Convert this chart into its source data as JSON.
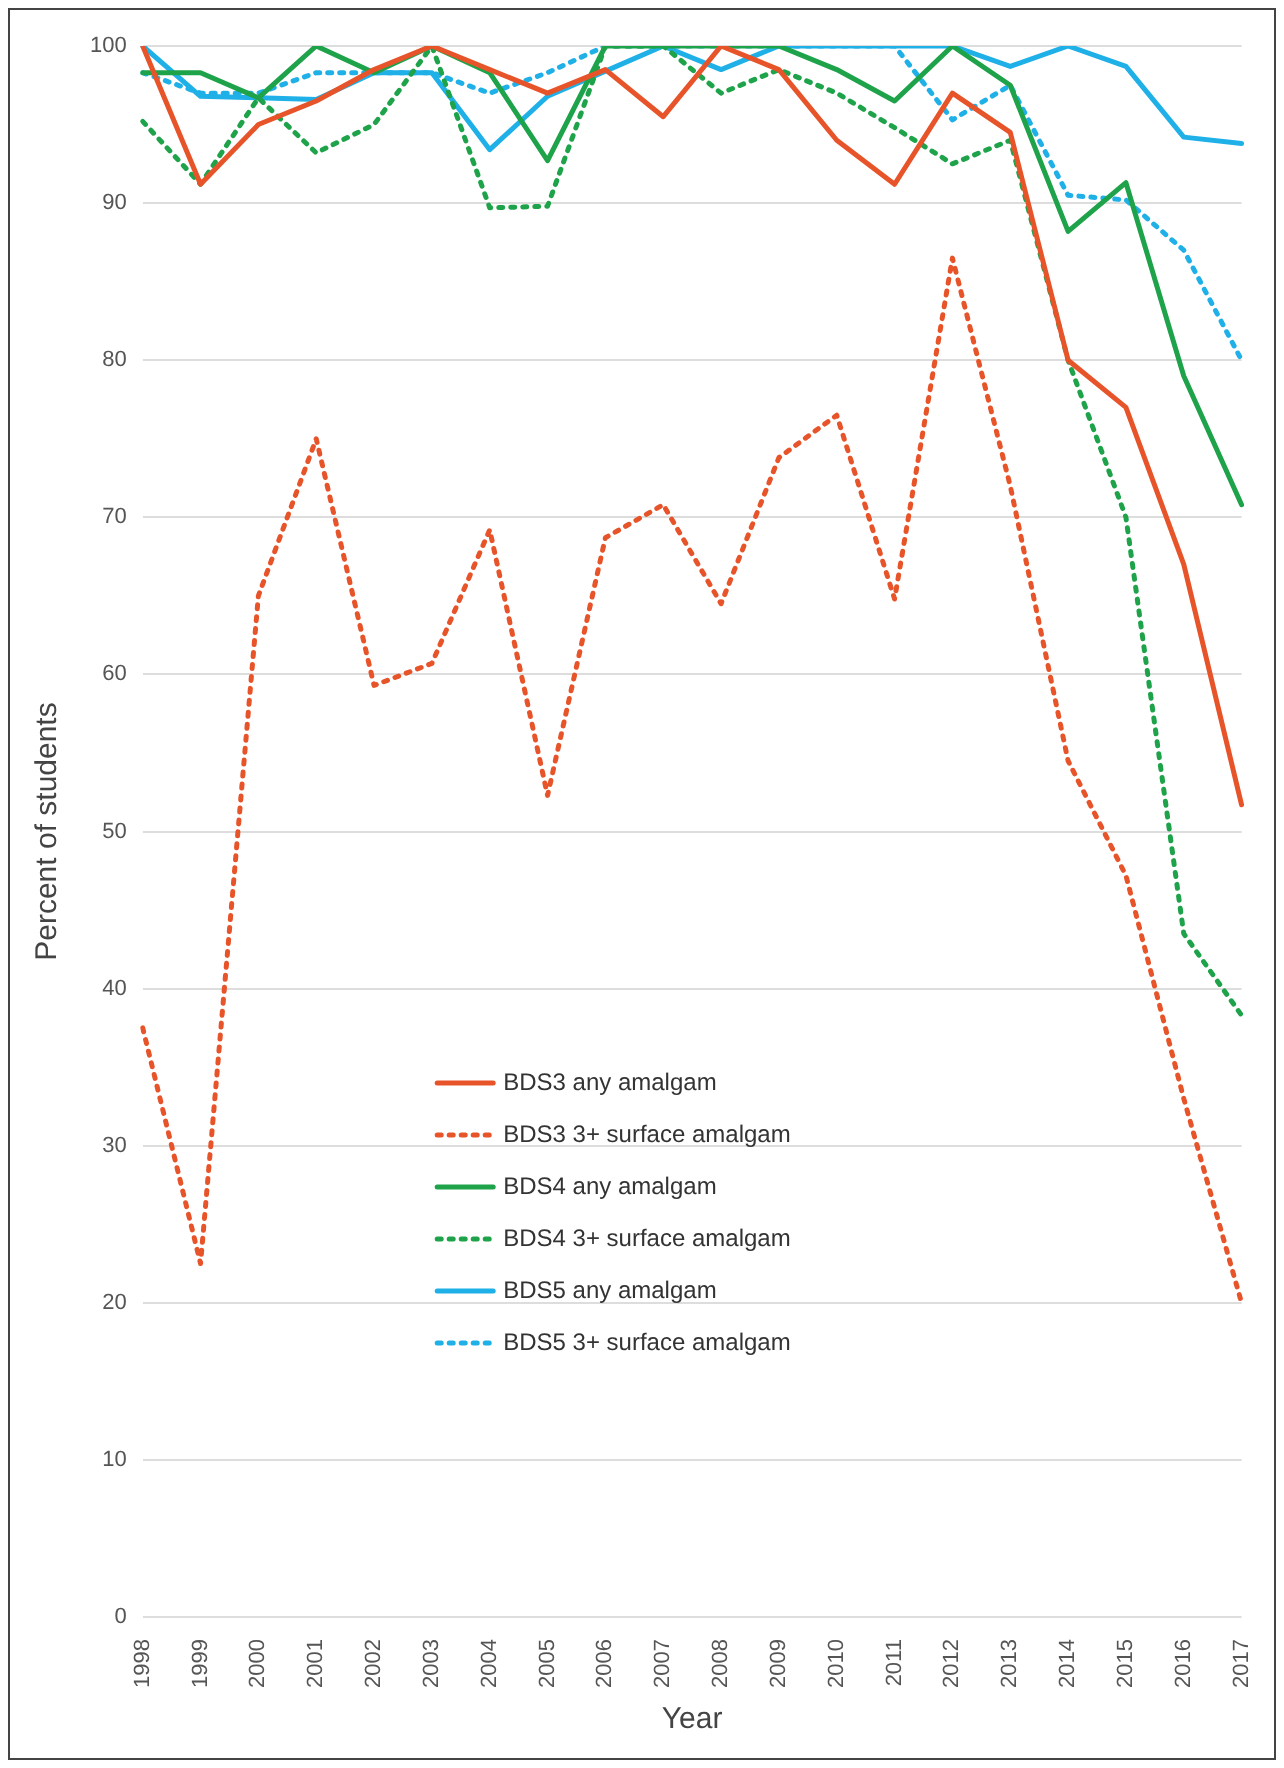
{
  "chart_data": {
    "type": "line",
    "xlabel": "Year",
    "ylabel": "Percent of students",
    "categories": [
      "1998",
      "1999",
      "2000",
      "2001",
      "2002",
      "2003",
      "2004",
      "2005",
      "2006",
      "2007",
      "2008",
      "2009",
      "2010",
      "2011",
      "2012",
      "2013",
      "2014",
      "2015",
      "2016",
      "2017"
    ],
    "ylim": [
      0,
      100
    ],
    "yticks": [
      0,
      10,
      20,
      30,
      40,
      50,
      60,
      70,
      80,
      90,
      100
    ],
    "grid": "y",
    "legend": "center",
    "marker": "none",
    "series": [
      {
        "name": "BDS3 any amalgam",
        "color": "#e8542a",
        "line_style": "solid",
        "values": [
          100,
          91.2,
          95,
          96.5,
          98.5,
          100,
          98.5,
          97,
          98.5,
          95.5,
          100,
          98.5,
          94,
          91.2,
          97,
          94.5,
          80,
          77,
          67,
          51.7
        ]
      },
      {
        "name": "BDS3 3+ surface amalgam",
        "color": "#e8542a",
        "line_style": "dotted",
        "values": [
          37.5,
          22.5,
          65,
          75,
          59.3,
          60.7,
          69.2,
          52.3,
          68.7,
          70.8,
          64.5,
          73.8,
          76.5,
          64.8,
          86.5,
          72,
          54.5,
          47.2,
          33,
          20
        ]
      },
      {
        "name": "BDS4 any amalgam",
        "color": "#1ea34a",
        "line_style": "solid",
        "values": [
          98.3,
          98.3,
          96.7,
          100,
          98.3,
          100,
          98.3,
          92.7,
          100,
          100,
          100,
          100,
          98.5,
          96.5,
          100,
          97.5,
          88.2,
          91.3,
          79,
          70.8
        ]
      },
      {
        "name": "BDS4 3+ surface amalgam",
        "color": "#1ea34a",
        "line_style": "dotted",
        "values": [
          95.2,
          91.2,
          96.7,
          93.2,
          95,
          100,
          89.7,
          89.8,
          100,
          100,
          97,
          98.5,
          97,
          94.8,
          92.5,
          94,
          80,
          70,
          43.5,
          38.3
        ]
      },
      {
        "name": "BDS5 any amalgam",
        "color": "#1fb0e8",
        "line_style": "solid",
        "values": [
          100,
          96.8,
          96.7,
          96.6,
          98.3,
          98.3,
          93.4,
          96.8,
          98.4,
          100,
          98.5,
          100,
          100,
          100,
          100,
          98.7,
          100,
          98.7,
          94.2,
          93.8
        ]
      },
      {
        "name": "BDS5 3+ surface amalgam",
        "color": "#1fb0e8",
        "line_style": "dotted",
        "values": [
          98.3,
          97,
          97,
          98.3,
          98.3,
          98.3,
          97,
          98.3,
          100,
          100,
          100,
          100,
          100,
          100,
          95.3,
          97.5,
          90.5,
          90.2,
          87,
          80
        ]
      }
    ]
  }
}
